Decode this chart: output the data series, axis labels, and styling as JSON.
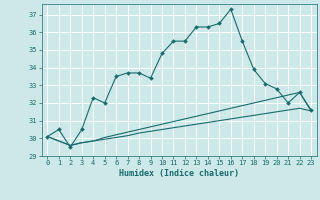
{
  "xlabel": "Humidex (Indice chaleur)",
  "ylabel": "",
  "background_color": "#cce8e8",
  "grid_color": "#ffffff",
  "line_color": "#1a6b6b",
  "xlim": [
    -0.5,
    23.5
  ],
  "ylim": [
    29,
    37.6
  ],
  "yticks": [
    29,
    30,
    31,
    32,
    33,
    34,
    35,
    36,
    37
  ],
  "xticks": [
    0,
    1,
    2,
    3,
    4,
    5,
    6,
    7,
    8,
    9,
    10,
    11,
    12,
    13,
    14,
    15,
    16,
    17,
    18,
    19,
    20,
    21,
    22,
    23
  ],
  "line1_x": [
    0,
    1,
    2,
    3,
    4,
    5,
    6,
    7,
    8,
    9,
    10,
    11,
    12,
    13,
    14,
    15,
    16,
    17,
    18,
    19,
    20,
    21,
    22,
    23
  ],
  "line1_y": [
    30.1,
    30.5,
    29.5,
    30.5,
    32.3,
    32.0,
    33.5,
    33.7,
    33.7,
    33.4,
    34.8,
    35.5,
    35.5,
    36.3,
    36.3,
    36.5,
    37.3,
    35.5,
    33.9,
    33.1,
    32.8,
    32.0,
    32.6,
    31.6
  ],
  "line2_x": [
    0,
    2,
    3,
    4,
    5,
    6,
    7,
    8,
    9,
    10,
    11,
    12,
    13,
    14,
    15,
    16,
    17,
    18,
    19,
    20,
    21,
    22,
    23
  ],
  "line2_y": [
    30.1,
    29.6,
    29.75,
    29.85,
    30.05,
    30.2,
    30.35,
    30.5,
    30.65,
    30.8,
    30.95,
    31.1,
    31.25,
    31.4,
    31.55,
    31.7,
    31.85,
    32.0,
    32.15,
    32.3,
    32.45,
    32.6,
    31.55
  ],
  "line3_x": [
    0,
    2,
    3,
    4,
    5,
    6,
    7,
    8,
    9,
    10,
    11,
    12,
    13,
    14,
    15,
    16,
    17,
    18,
    19,
    20,
    21,
    22,
    23
  ],
  "line3_y": [
    30.1,
    29.6,
    29.75,
    29.85,
    29.95,
    30.05,
    30.15,
    30.3,
    30.4,
    30.5,
    30.6,
    30.7,
    30.8,
    30.9,
    31.0,
    31.1,
    31.2,
    31.3,
    31.4,
    31.5,
    31.6,
    31.7,
    31.55
  ]
}
